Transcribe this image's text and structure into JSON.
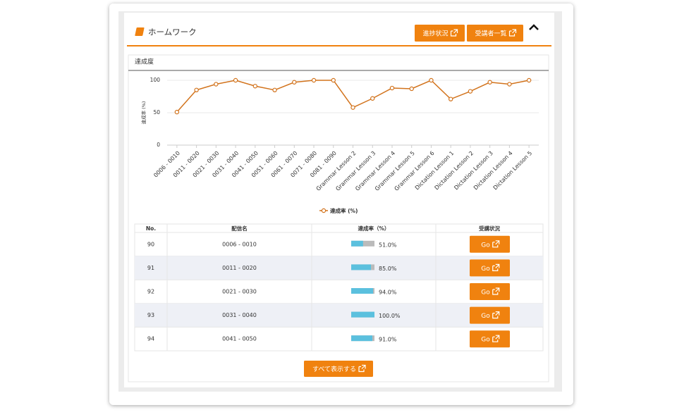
{
  "header": {
    "title": "ホームワーク",
    "buttons": [
      "進捗状況",
      "受講者一覧"
    ]
  },
  "chart_data": {
    "type": "line",
    "title": "達成度",
    "y_label": "達成率 (%)",
    "categories": [
      "0006 - 0010",
      "0011 - 0020",
      "0021 - 0030",
      "0031 - 0040",
      "0041 - 0050",
      "0051 - 0060",
      "0061 - 0070",
      "0071 - 0080",
      "0081 - 0090",
      "Grammar Lesson 2",
      "Grammar Lesson 3",
      "Grammar Lesson 4",
      "Grammar Lesson 5",
      "Grammar Lesson 6",
      "Dictation Lesson 1",
      "Dictation Lesson 2",
      "Dictation Lesson 3",
      "Dictation Lesson 4",
      "Dictation Lesson 5"
    ],
    "series": [
      {
        "name": "達成率 (%)",
        "color": "#d2731c",
        "values": [
          51,
          85,
          94,
          100,
          91,
          85,
          97,
          100,
          100,
          58,
          72,
          88,
          87,
          100,
          71,
          83,
          97,
          94,
          100
        ]
      }
    ],
    "ylim": [
      0,
      100
    ],
    "yticks": [
      0,
      50,
      100
    ],
    "grid": true,
    "legend": "bottom"
  },
  "table": {
    "columns": [
      "No.",
      "配信名",
      "達成率（%）",
      "受講状況"
    ],
    "rows": [
      {
        "no": "90",
        "name": "0006 - 0010",
        "rate": 51,
        "rate_label": "51.0%",
        "action": "Go"
      },
      {
        "no": "91",
        "name": "0011 - 0020",
        "rate": 85,
        "rate_label": "85.0%",
        "action": "Go"
      },
      {
        "no": "92",
        "name": "0021 - 0030",
        "rate": 94,
        "rate_label": "94.0%",
        "action": "Go"
      },
      {
        "no": "93",
        "name": "0031 - 0040",
        "rate": 100,
        "rate_label": "100.0%",
        "action": "Go"
      },
      {
        "no": "94",
        "name": "0041 - 0050",
        "rate": 91,
        "rate_label": "91.0%",
        "action": "Go"
      }
    ]
  },
  "footer": {
    "button": "すべて表示する"
  }
}
